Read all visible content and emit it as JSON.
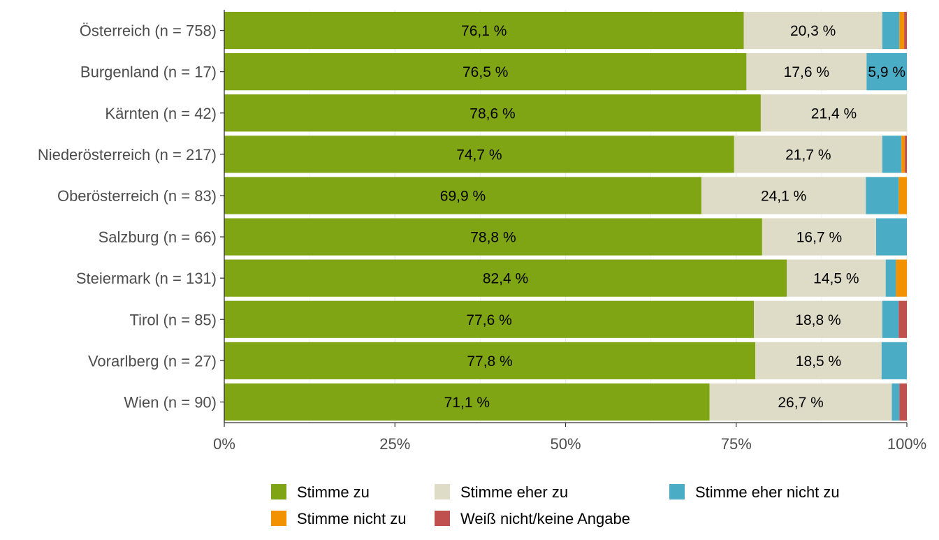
{
  "chart_data": {
    "type": "bar",
    "orientation": "horizontal",
    "stacked": "percent",
    "categories": [
      "Österreich (n = 758)",
      "Burgenland (n = 17)",
      "Kärnten (n = 42)",
      "Niederösterreich (n = 217)",
      "Oberösterreich (n = 83)",
      "Salzburg (n = 66)",
      "Steiermark (n = 131)",
      "Tirol (n = 85)",
      "Vorarlberg (n = 27)",
      "Wien (n = 90)"
    ],
    "series": [
      {
        "name": "Stimme zu",
        "color": "#7fa514",
        "values": [
          76.1,
          76.5,
          78.6,
          74.7,
          69.9,
          78.8,
          82.4,
          77.6,
          77.8,
          71.1
        ],
        "labels": [
          "76,1 %",
          "76,5 %",
          "78,6 %",
          "74,7 %",
          "69,9 %",
          "78,8 %",
          "82,4 %",
          "77,6 %",
          "77,8 %",
          "71,1 %"
        ]
      },
      {
        "name": "Stimme eher zu",
        "color": "#dedbc7",
        "values": [
          20.3,
          17.6,
          21.4,
          21.7,
          24.1,
          16.7,
          14.5,
          18.8,
          18.5,
          26.7
        ],
        "labels": [
          "20,3 %",
          "17,6 %",
          "21,4 %",
          "21,7 %",
          "24,1 %",
          "16,7 %",
          "14,5 %",
          "18,8 %",
          "18,5 %",
          "26,7 %"
        ]
      },
      {
        "name": "Stimme eher nicht zu",
        "color": "#4bacc6",
        "values": [
          2.5,
          5.9,
          0,
          2.8,
          4.8,
          4.5,
          1.5,
          2.4,
          3.7,
          1.1
        ],
        "labels": [
          "",
          "5,9 %",
          "",
          "",
          "",
          "",
          "",
          "",
          "",
          ""
        ]
      },
      {
        "name": "Stimme nicht zu",
        "color": "#f39200",
        "values": [
          0.7,
          0,
          0,
          0.5,
          1.2,
          0,
          1.6,
          0,
          0,
          0
        ],
        "labels": [
          "",
          "",
          "",
          "",
          "",
          "",
          "",
          "",
          "",
          ""
        ]
      },
      {
        "name": "Weiß nicht/keine Angabe",
        "color": "#c0504d",
        "values": [
          0.4,
          0,
          0,
          0.3,
          0,
          0,
          0,
          1.2,
          0,
          1.1
        ],
        "labels": [
          "",
          "",
          "",
          "",
          "",
          "",
          "",
          "",
          "",
          ""
        ]
      }
    ],
    "xticks": [
      "0%",
      "25%",
      "50%",
      "75%",
      "100%"
    ],
    "xlim": [
      0,
      100
    ],
    "grid": true,
    "legend": "bottom",
    "legend_rows": [
      [
        "Stimme zu",
        "Stimme eher zu",
        "Stimme eher nicht zu"
      ],
      [
        "Stimme nicht zu",
        "Weiß nicht/keine Angabe"
      ]
    ],
    "colors": {
      "background": "#ffffff",
      "gridline": "#ebebeb",
      "axis": "#333333",
      "label_text": "#4d4d4d"
    }
  }
}
